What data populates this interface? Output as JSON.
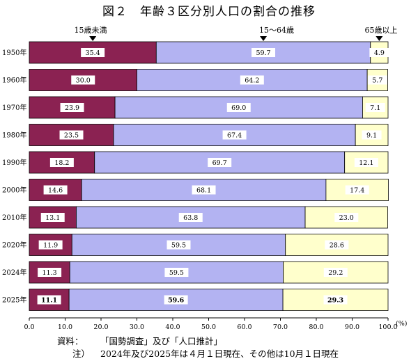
{
  "title": "図２　年齢３区分別人口の割合の推移",
  "column_headers": {
    "young": "15歳未満",
    "working": "15～64歳",
    "elderly": "65歳以上"
  },
  "axis_unit": "(%)",
  "colors": {
    "young": "#8B2252",
    "working": "#B3B3F2",
    "elderly": "#FFFFCC",
    "border": "#000000"
  },
  "notes": {
    "source_label": "資料：",
    "source_text": "「国勢調査」及び「人口推計」",
    "note_label": "注）",
    "note_text": "2024年及び2025年は４月１日現在、その他は10月１日現在"
  },
  "chart_data": {
    "type": "bar",
    "orientation": "horizontal",
    "stacked": true,
    "title": "図２　年齢３区分別人口の割合の推移",
    "categories": [
      "1950年",
      "1960年",
      "1970年",
      "1980年",
      "1990年",
      "2000年",
      "2010年",
      "2020年",
      "2024年",
      "2025年"
    ],
    "series": [
      {
        "name": "15歳未満",
        "values": [
          35.4,
          30.0,
          23.9,
          23.5,
          18.2,
          14.6,
          13.1,
          11.9,
          11.3,
          11.1
        ],
        "labels": [
          "35.4",
          "30.0",
          "23.9",
          "23.5",
          "18.2",
          "14.6",
          "13.1",
          "11.9",
          "11.3",
          "11.1"
        ]
      },
      {
        "name": "15～64歳",
        "values": [
          59.7,
          64.2,
          69.0,
          67.4,
          69.7,
          68.1,
          63.8,
          59.5,
          59.5,
          59.6
        ],
        "labels": [
          "59.7",
          "64.2",
          "69.0",
          "67.4",
          "69.7",
          "68.1",
          "63.8",
          "59.5",
          "59.5",
          "59.6"
        ]
      },
      {
        "name": "65歳以上",
        "values": [
          4.9,
          5.7,
          7.1,
          9.1,
          12.1,
          17.4,
          23.0,
          28.6,
          29.2,
          29.3
        ],
        "labels": [
          "4.9",
          "5.7",
          "7.1",
          "9.1",
          "12.1",
          "17.4",
          "23.0",
          "28.6",
          "29.2",
          "29.3"
        ]
      }
    ],
    "bold_categories": [
      "2025年"
    ],
    "xlim": [
      0,
      100
    ],
    "xticks": [
      0,
      10,
      20,
      30,
      40,
      50,
      60,
      70,
      80,
      90,
      100
    ],
    "xtick_labels": [
      "0.0",
      "10.0",
      "20.0",
      "30.0",
      "40.0",
      "50.0",
      "60.0",
      "70.0",
      "80.0",
      "90.0",
      "100.0"
    ],
    "xlabel": "(%)",
    "grid": false,
    "legend": "column headers above bars"
  }
}
